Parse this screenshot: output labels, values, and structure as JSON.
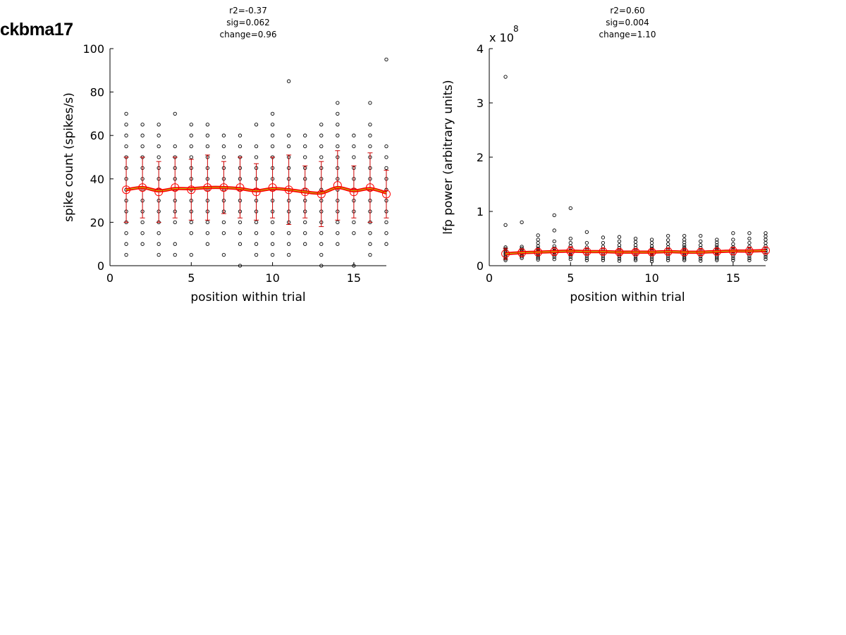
{
  "figure": {
    "title": "ckbma17"
  },
  "chart_data": [
    {
      "type": "scatter",
      "stats": [
        "r2=-0.37",
        "sig=0.062",
        "change=0.96"
      ],
      "xlabel": "position within trial",
      "ylabel": "spike count (spikes/s)",
      "xlim": [
        0,
        17
      ],
      "ylim": [
        0,
        100
      ],
      "xticks": [
        "0",
        "5",
        "10",
        "15"
      ],
      "yticks": [
        "0",
        "20",
        "40",
        "60",
        "80",
        "100"
      ],
      "exponent_label": "",
      "x": [
        1,
        2,
        3,
        4,
        5,
        6,
        7,
        8,
        9,
        10,
        11,
        12,
        13,
        14,
        15,
        16,
        17
      ],
      "mean": [
        35,
        36,
        34,
        36,
        35,
        36,
        36,
        36,
        34,
        36,
        35,
        34,
        33,
        37,
        34,
        36,
        33
      ],
      "sd": [
        15,
        14,
        14,
        14,
        14,
        15,
        12,
        14,
        13,
        14,
        16,
        12,
        15,
        16,
        12,
        16,
        11
      ],
      "smooth": [
        35,
        36,
        34.5,
        35.5,
        35.5,
        36,
        36,
        35.5,
        34.5,
        35.5,
        35,
        34,
        33.5,
        36,
        34.5,
        35.5,
        33.5
      ],
      "points": [
        [
          5,
          10,
          15,
          20,
          25,
          30,
          35,
          40,
          45,
          50,
          55,
          60,
          65,
          70
        ],
        [
          10,
          15,
          20,
          25,
          30,
          35,
          40,
          45,
          50,
          55,
          60,
          65
        ],
        [
          5,
          10,
          15,
          20,
          25,
          30,
          35,
          40,
          45,
          50,
          55,
          60,
          65
        ],
        [
          5,
          10,
          20,
          25,
          30,
          35,
          40,
          45,
          50,
          55,
          70
        ],
        [
          5,
          15,
          20,
          25,
          30,
          35,
          40,
          45,
          50,
          55,
          60,
          65
        ],
        [
          10,
          15,
          20,
          25,
          30,
          35,
          40,
          45,
          50,
          55,
          60,
          65
        ],
        [
          5,
          15,
          20,
          25,
          30,
          35,
          40,
          45,
          50,
          55,
          60
        ],
        [
          0,
          10,
          15,
          20,
          25,
          30,
          35,
          40,
          45,
          50,
          55,
          60
        ],
        [
          5,
          10,
          15,
          20,
          25,
          30,
          35,
          40,
          45,
          50,
          55,
          65
        ],
        [
          5,
          10,
          15,
          20,
          25,
          30,
          35,
          40,
          45,
          50,
          55,
          60,
          65,
          70
        ],
        [
          5,
          10,
          15,
          20,
          25,
          30,
          35,
          40,
          45,
          50,
          55,
          60,
          85
        ],
        [
          10,
          15,
          20,
          25,
          30,
          35,
          40,
          45,
          50,
          55,
          60
        ],
        [
          0,
          5,
          10,
          15,
          20,
          25,
          30,
          35,
          40,
          45,
          50,
          55,
          60,
          65
        ],
        [
          10,
          15,
          20,
          25,
          30,
          35,
          40,
          45,
          50,
          55,
          60,
          65,
          70,
          75
        ],
        [
          0,
          15,
          20,
          25,
          30,
          35,
          40,
          45,
          50,
          55,
          60
        ],
        [
          5,
          10,
          15,
          20,
          25,
          30,
          35,
          40,
          45,
          50,
          55,
          60,
          65,
          75
        ],
        [
          10,
          15,
          20,
          25,
          30,
          35,
          40,
          45,
          50,
          55,
          95
        ]
      ],
      "colors": {
        "points": "#000000",
        "mean": "#ff0000",
        "errorbar": "#cc0000",
        "smooth_outer": "#ff0000",
        "smooth_inner": "#b8c400"
      }
    },
    {
      "type": "scatter",
      "stats": [
        "r2=0.60",
        "sig=0.004",
        "change=1.10"
      ],
      "xlabel": "position within trial",
      "ylabel": "lfp power (arbitrary units)",
      "xlim": [
        0,
        17
      ],
      "ylim": [
        0,
        4
      ],
      "xticks": [
        "0",
        "5",
        "10",
        "15"
      ],
      "yticks": [
        "0",
        "1",
        "2",
        "3",
        "4"
      ],
      "exponent_label": "x 10",
      "exponent": "8",
      "x": [
        1,
        2,
        3,
        4,
        5,
        6,
        7,
        8,
        9,
        10,
        11,
        12,
        13,
        14,
        15,
        16,
        17
      ],
      "mean": [
        0.22,
        0.24,
        0.25,
        0.26,
        0.27,
        0.26,
        0.26,
        0.25,
        0.25,
        0.25,
        0.26,
        0.25,
        0.25,
        0.26,
        0.27,
        0.27,
        0.28
      ],
      "sd": [
        0.1,
        0.07,
        0.06,
        0.07,
        0.08,
        0.06,
        0.06,
        0.05,
        0.05,
        0.05,
        0.06,
        0.06,
        0.06,
        0.06,
        0.07,
        0.07,
        0.06
      ],
      "smooth": [
        0.22,
        0.24,
        0.25,
        0.26,
        0.27,
        0.26,
        0.26,
        0.25,
        0.25,
        0.25,
        0.26,
        0.25,
        0.25,
        0.26,
        0.27,
        0.27,
        0.28
      ],
      "points": [
        [
          0.1,
          0.13,
          0.16,
          0.19,
          0.22,
          0.25,
          0.28,
          0.31,
          0.34,
          0.75,
          3.48
        ],
        [
          0.14,
          0.17,
          0.2,
          0.23,
          0.26,
          0.29,
          0.32,
          0.35,
          0.8
        ],
        [
          0.11,
          0.14,
          0.17,
          0.2,
          0.23,
          0.26,
          0.29,
          0.32,
          0.36,
          0.42,
          0.48,
          0.56
        ],
        [
          0.12,
          0.16,
          0.2,
          0.24,
          0.28,
          0.32,
          0.36,
          0.45,
          0.65,
          0.93
        ],
        [
          0.12,
          0.16,
          0.2,
          0.24,
          0.28,
          0.32,
          0.36,
          0.42,
          0.5,
          1.06
        ],
        [
          0.1,
          0.14,
          0.18,
          0.22,
          0.26,
          0.3,
          0.34,
          0.42,
          0.62
        ],
        [
          0.1,
          0.14,
          0.18,
          0.22,
          0.26,
          0.3,
          0.35,
          0.42,
          0.52
        ],
        [
          0.09,
          0.13,
          0.17,
          0.21,
          0.25,
          0.29,
          0.33,
          0.38,
          0.45,
          0.53
        ],
        [
          0.1,
          0.13,
          0.17,
          0.21,
          0.25,
          0.29,
          0.33,
          0.38,
          0.44,
          0.5
        ],
        [
          0.08,
          0.12,
          0.16,
          0.2,
          0.24,
          0.28,
          0.32,
          0.36,
          0.42,
          0.48
        ],
        [
          0.1,
          0.14,
          0.18,
          0.22,
          0.26,
          0.3,
          0.34,
          0.4,
          0.47,
          0.55
        ],
        [
          0.1,
          0.13,
          0.16,
          0.19,
          0.22,
          0.25,
          0.28,
          0.31,
          0.34,
          0.38,
          0.43,
          0.48,
          0.55
        ],
        [
          0.09,
          0.13,
          0.17,
          0.21,
          0.25,
          0.29,
          0.33,
          0.38,
          0.45,
          0.55
        ],
        [
          0.1,
          0.13,
          0.16,
          0.19,
          0.22,
          0.25,
          0.28,
          0.31,
          0.34,
          0.38,
          0.43,
          0.48
        ],
        [
          0.1,
          0.14,
          0.18,
          0.22,
          0.26,
          0.3,
          0.34,
          0.4,
          0.48,
          0.6
        ],
        [
          0.1,
          0.14,
          0.18,
          0.22,
          0.26,
          0.3,
          0.35,
          0.42,
          0.5,
          0.6
        ],
        [
          0.12,
          0.16,
          0.2,
          0.24,
          0.28,
          0.32,
          0.36,
          0.42,
          0.48,
          0.54,
          0.6
        ]
      ],
      "colors": {
        "points": "#000000",
        "mean": "#ff0000",
        "errorbar": "#cc0000",
        "smooth_outer": "#ff0000",
        "smooth_inner": "#b8c400"
      }
    }
  ]
}
